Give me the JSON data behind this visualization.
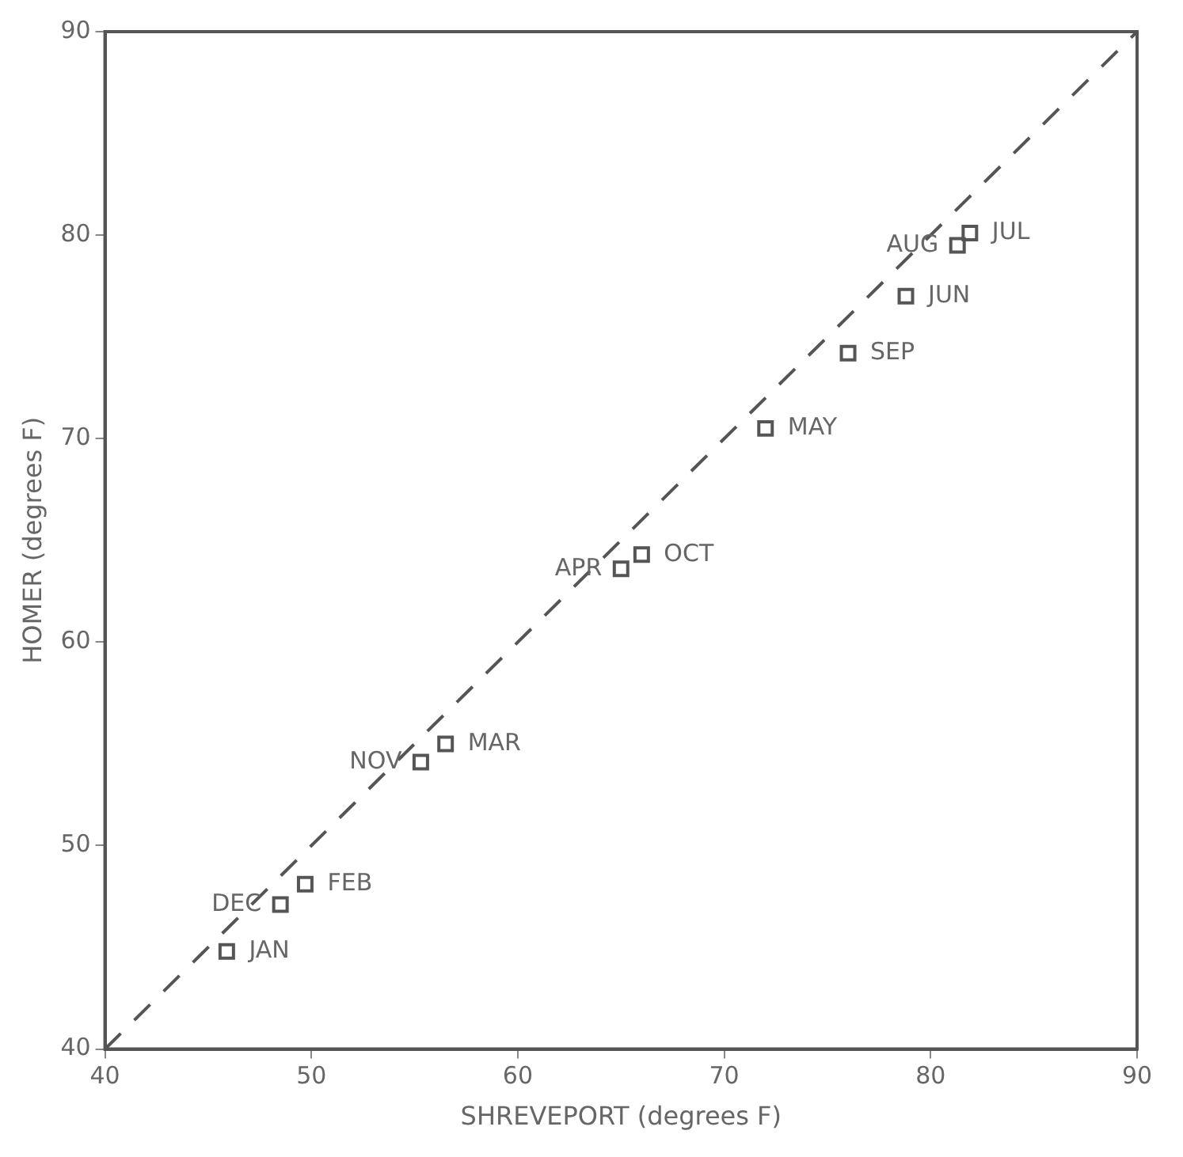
{
  "chart_data": {
    "type": "scatter",
    "xlabel": "SHREVEPORT (degrees F)",
    "ylabel": "HOMER (degrees F)",
    "xlim": [
      40,
      90
    ],
    "ylim": [
      40,
      90
    ],
    "xticks": [
      40,
      50,
      60,
      70,
      80,
      90
    ],
    "yticks": [
      40,
      50,
      60,
      70,
      80,
      90
    ],
    "grid": false,
    "legend": false,
    "series": [
      {
        "color": "#555555",
        "marker": "square",
        "x": [
          45.9,
          49.7,
          56.5,
          65.0,
          72.0,
          78.8,
          81.9,
          81.3,
          76.0,
          66.0,
          55.3,
          48.5
        ],
        "values": [
          44.8,
          48.1,
          55.0,
          63.6,
          70.5,
          77.0,
          80.1,
          79.5,
          74.2,
          64.3,
          54.1,
          47.1
        ]
      },
      {
        "type": "line",
        "color": "#555555",
        "line_style": "dashed",
        "marker": "none",
        "x": [
          40,
          90
        ],
        "values": [
          40,
          90
        ]
      }
    ],
    "annotations": [
      {
        "text": "JAN",
        "x": 45.9,
        "y": 44.8
      },
      {
        "text": "FEB",
        "x": 49.7,
        "y": 48.1
      },
      {
        "text": "MAR",
        "x": 56.5,
        "y": 55.0
      },
      {
        "text": "APR",
        "x": 65.0,
        "y": 63.6
      },
      {
        "text": "MAY",
        "x": 72.0,
        "y": 70.5
      },
      {
        "text": "JUN",
        "x": 78.8,
        "y": 77.0
      },
      {
        "text": "JUL",
        "x": 81.9,
        "y": 80.1
      },
      {
        "text": "AUG",
        "x": 81.3,
        "y": 79.5
      },
      {
        "text": "SEP",
        "x": 76.0,
        "y": 74.2
      },
      {
        "text": "OCT",
        "x": 66.0,
        "y": 64.3
      },
      {
        "text": "NOV",
        "x": 55.3,
        "y": 54.1
      },
      {
        "text": "DEC",
        "x": 48.5,
        "y": 47.1
      }
    ]
  }
}
